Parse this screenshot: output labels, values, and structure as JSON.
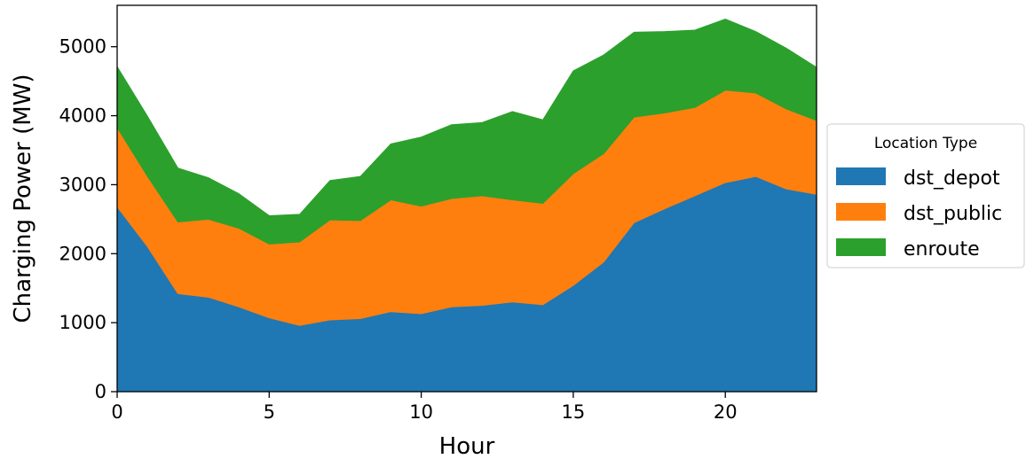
{
  "chart_data": {
    "type": "area",
    "stacked": true,
    "title": "",
    "xlabel": "Hour",
    "ylabel": "Charging Power (MW)",
    "xlim": [
      0,
      23
    ],
    "ylim": [
      0,
      5600
    ],
    "xticks": [
      0,
      5,
      10,
      15,
      20
    ],
    "yticks": [
      0,
      1000,
      2000,
      3000,
      4000,
      5000
    ],
    "grid": false,
    "legend": {
      "title": "Location Type",
      "placement": "center-right outside"
    },
    "x": [
      0,
      1,
      2,
      3,
      4,
      5,
      6,
      7,
      8,
      9,
      10,
      11,
      12,
      13,
      14,
      15,
      16,
      17,
      18,
      19,
      20,
      21,
      22,
      23
    ],
    "series": [
      {
        "name": "dst_depot",
        "color": "#1f77b4",
        "values": [
          2680,
          2100,
          1420,
          1370,
          1230,
          1070,
          960,
          1040,
          1060,
          1160,
          1130,
          1230,
          1250,
          1300,
          1260,
          1540,
          1880,
          2450,
          2650,
          2840,
          3030,
          3120,
          2940,
          2860
        ]
      },
      {
        "name": "dst_public",
        "color": "#ff7f0e",
        "values": [
          1150,
          1020,
          1040,
          1130,
          1140,
          1070,
          1210,
          1450,
          1420,
          1620,
          1560,
          1570,
          1590,
          1480,
          1470,
          1620,
          1570,
          1530,
          1390,
          1280,
          1340,
          1210,
          1160,
          1070
        ]
      },
      {
        "name": "enroute",
        "color": "#2ca02c",
        "values": [
          880,
          870,
          780,
          600,
          500,
          410,
          400,
          570,
          640,
          810,
          1000,
          1070,
          1060,
          1280,
          1210,
          1490,
          1430,
          1230,
          1180,
          1120,
          1030,
          890,
          880,
          770
        ]
      }
    ]
  }
}
